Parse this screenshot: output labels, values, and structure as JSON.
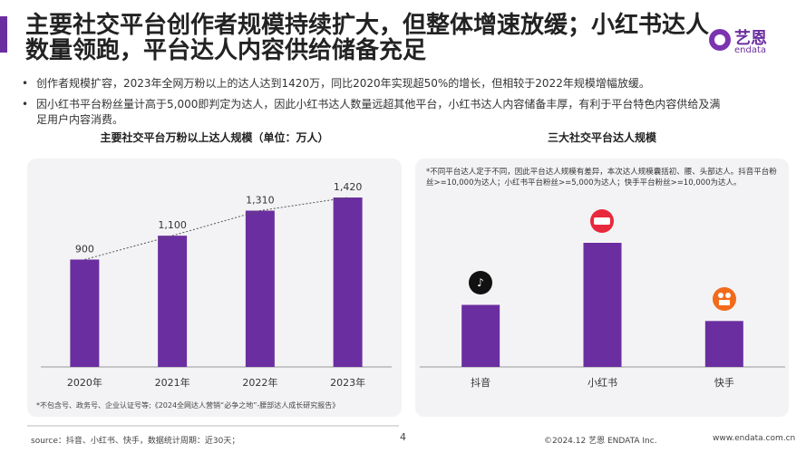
{
  "header": {
    "title": "主要社交平台创作者规模持续扩大，但整体增速放缓；小红书达人数量领跑，平台达人内容供给储备充足",
    "logo": "艺恩",
    "logo_sub": "endata"
  },
  "bullets": [
    "创作者规模扩容，2023年全网万粉以上的达人达到1420万，同比2020年实现超50%的增长，但相较于2022年规模增幅放缓。",
    "因小红书平台粉丝量计高于5,000即判定为达人，因此小红书达人数量远超其他平台，小红书达人内容储备丰厚，有利于平台特色内容供给及满足用户内容消费。"
  ],
  "chart_data": [
    {
      "type": "bar",
      "title": "主要社交平台万粉以上达人规模（单位：万人）",
      "categories": [
        "2020年",
        "2021年",
        "2022年",
        "2023年"
      ],
      "values": [
        900,
        1100,
        1310,
        1420
      ],
      "value_labels": [
        "900",
        "1,100",
        "1,310",
        "1,420"
      ],
      "color": "#6b2ea0",
      "trendline": true,
      "note": "*不包含号、政务号、企业认证号等;《2024全网达人营销“必争之地”-腰部达人成长研究报告》"
    },
    {
      "type": "bar",
      "title": "三大社交平台达人规模",
      "categories": [
        "抖音",
        "小红书",
        "快手"
      ],
      "values": [
        50,
        100,
        37
      ],
      "color": "#6b2ea0",
      "note": "*不同平台达人定于不同，因此平台达人规模有差异，本次达人规模囊括初、腰、头部达人。抖音平台粉丝>=10,000为达人；小红书平台粉丝>=5,000为达人；快手平台粉丝>=10,000为达人。"
    }
  ],
  "footer": {
    "source": "source：抖音、小红书、快手，数据统计周期：近30天；",
    "page": "4",
    "copyright": "©2024.12 艺恩 ENDATA Inc.",
    "url": "www.endata.com.cn"
  }
}
